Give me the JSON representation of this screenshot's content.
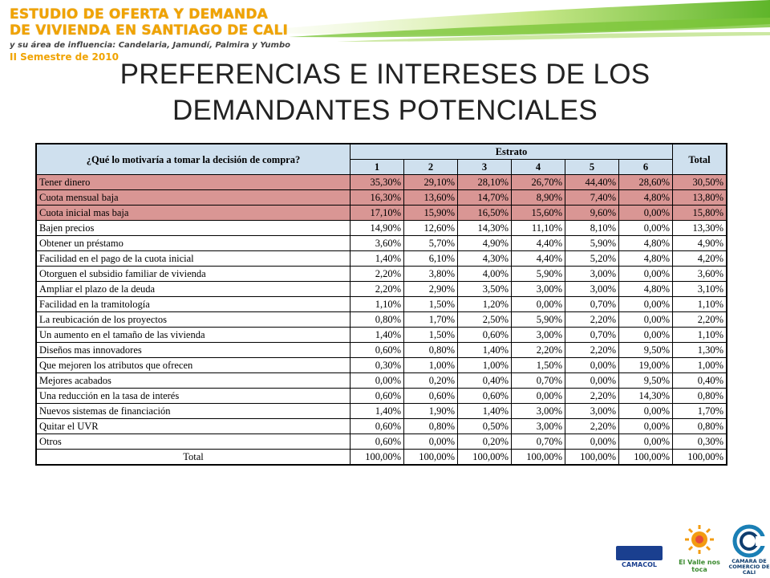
{
  "brand": {
    "line1": "ESTUDIO DE OFERTA Y DEMANDA",
    "line2": "DE VIVIENDA EN SANTIAGO DE CALI",
    "line3": "y su área de influencia: Candelaria, Jamundí, Palmira y Yumbo",
    "line4": "II Semestre de 2010"
  },
  "title": {
    "line1": "PREFERENCIAS E INTERESES DE LOS",
    "line2": "DEMANDANTES POTENCIALES"
  },
  "table": {
    "question_header": "¿Qué lo motivaría a tomar la decisión de compra?",
    "estrato_header": "Estrato",
    "total_header": "Total",
    "estratos": [
      "1",
      "2",
      "3",
      "4",
      "5",
      "6"
    ],
    "rows": [
      {
        "label": "Tener dinero",
        "values": [
          "35,30%",
          "29,10%",
          "28,10%",
          "26,70%",
          "44,40%",
          "28,60%"
        ],
        "total": "30,50%"
      },
      {
        "label": "Cuota mensual baja",
        "values": [
          "16,30%",
          "13,60%",
          "14,70%",
          "8,90%",
          "7,40%",
          "4,80%"
        ],
        "total": "13,80%"
      },
      {
        "label": "Cuota inicial mas baja",
        "values": [
          "17,10%",
          "15,90%",
          "16,50%",
          "15,60%",
          "9,60%",
          "0,00%"
        ],
        "total": "15,80%"
      },
      {
        "label": "Bajen precios",
        "values": [
          "14,90%",
          "12,60%",
          "14,30%",
          "11,10%",
          "8,10%",
          "0,00%"
        ],
        "total": "13,30%"
      },
      {
        "label": "Obtener un préstamo",
        "values": [
          "3,60%",
          "5,70%",
          "4,90%",
          "4,40%",
          "5,90%",
          "4,80%"
        ],
        "total": "4,90%"
      },
      {
        "label": "Facilidad en el pago de la cuota inicial",
        "values": [
          "1,40%",
          "6,10%",
          "4,30%",
          "4,40%",
          "5,20%",
          "4,80%"
        ],
        "total": "4,20%"
      },
      {
        "label": "Otorguen el subsidio familiar de vivienda",
        "values": [
          "2,20%",
          "3,80%",
          "4,00%",
          "5,90%",
          "3,00%",
          "0,00%"
        ],
        "total": "3,60%"
      },
      {
        "label": "Ampliar el plazo de la deuda",
        "values": [
          "2,20%",
          "2,90%",
          "3,50%",
          "3,00%",
          "3,00%",
          "4,80%"
        ],
        "total": "3,10%"
      },
      {
        "label": "Facilidad en la tramitología",
        "values": [
          "1,10%",
          "1,50%",
          "1,20%",
          "0,00%",
          "0,70%",
          "0,00%"
        ],
        "total": "1,10%"
      },
      {
        "label": "La reubicación de los proyectos",
        "values": [
          "0,80%",
          "1,70%",
          "2,50%",
          "5,90%",
          "2,20%",
          "0,00%"
        ],
        "total": "2,20%"
      },
      {
        "label": "Un aumento en el tamaño de las vivienda",
        "values": [
          "1,40%",
          "1,50%",
          "0,60%",
          "3,00%",
          "0,70%",
          "0,00%"
        ],
        "total": "1,10%"
      },
      {
        "label": "Diseños mas innovadores",
        "values": [
          "0,60%",
          "0,80%",
          "1,40%",
          "2,20%",
          "2,20%",
          "9,50%"
        ],
        "total": "1,30%"
      },
      {
        "label": "Que mejoren los atributos que ofrecen",
        "values": [
          "0,30%",
          "1,00%",
          "1,00%",
          "1,50%",
          "0,00%",
          "19,00%"
        ],
        "total": "1,00%"
      },
      {
        "label": "Mejores acabados",
        "values": [
          "0,00%",
          "0,20%",
          "0,40%",
          "0,70%",
          "0,00%",
          "9,50%"
        ],
        "total": "0,40%"
      },
      {
        "label": "Una reducción en la tasa de interés",
        "values": [
          "0,60%",
          "0,60%",
          "0,60%",
          "0,00%",
          "2,20%",
          "14,30%"
        ],
        "total": "0,80%"
      },
      {
        "label": "Nuevos sistemas de financiación",
        "values": [
          "1,40%",
          "1,90%",
          "1,40%",
          "3,00%",
          "3,00%",
          "0,00%"
        ],
        "total": "1,70%"
      },
      {
        "label": "Quitar el UVR",
        "values": [
          "0,60%",
          "0,80%",
          "0,50%",
          "3,00%",
          "2,20%",
          "0,00%"
        ],
        "total": "0,80%"
      },
      {
        "label": "Otros",
        "values": [
          "0,60%",
          "0,00%",
          "0,20%",
          "0,70%",
          "0,00%",
          "0,00%"
        ],
        "total": "0,30%"
      }
    ],
    "highlighted_rows": [
      0,
      1,
      2
    ],
    "highlight_color": "#d99694",
    "header_color": "#cfe0ee",
    "total_row": {
      "label": "Total",
      "values": [
        "100,00%",
        "100,00%",
        "100,00%",
        "100,00%",
        "100,00%",
        "100,00%"
      ],
      "total": "100,00%"
    }
  },
  "logos": {
    "camacol": "CAMACOL",
    "valle": "El Valle nos toca",
    "camara": "CAMARA DE COMERCIO DE CALI"
  },
  "colors": {
    "brand_orange": "#f0a300",
    "swoosh_green": "#6bbf2a"
  }
}
